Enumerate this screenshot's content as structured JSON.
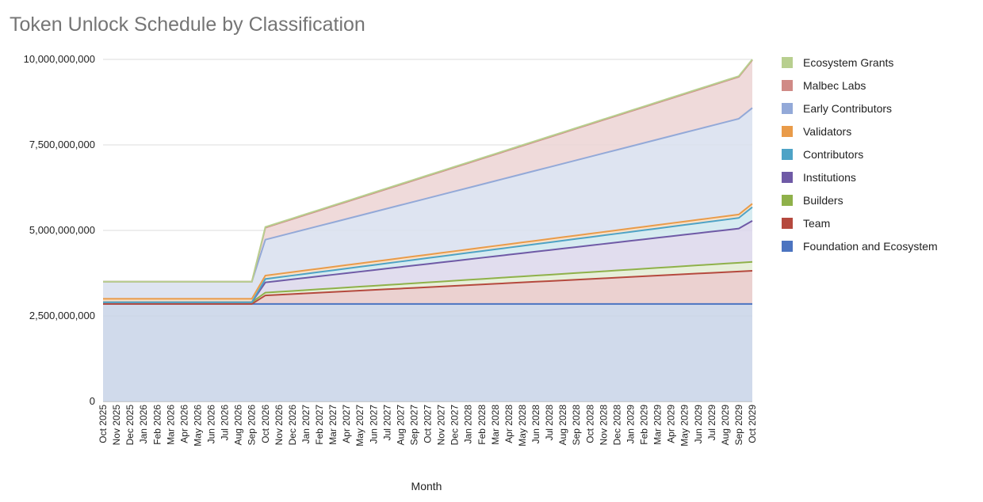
{
  "title": "Token Unlock Schedule by Classification",
  "chart_data": {
    "type": "area",
    "stacked": true,
    "title": "Token Unlock Schedule by Classification",
    "xlabel": "Month",
    "ylabel": "",
    "ylim": [
      0,
      10000000000
    ],
    "yticks": [
      0,
      2500000000,
      5000000000,
      7500000000,
      10000000000
    ],
    "ytick_labels": [
      "0",
      "2,500,000,000",
      "5,000,000,000",
      "7,500,000,000",
      "10,000,000,000"
    ],
    "grid": true,
    "legend_position": "right",
    "categories": [
      "Oct 2025",
      "Nov 2025",
      "Dec 2025",
      "Jan 2026",
      "Feb 2026",
      "Mar 2026",
      "Apr 2026",
      "May 2026",
      "Jun 2026",
      "Jul 2026",
      "Aug 2026",
      "Sep 2026",
      "Oct 2026",
      "Nov 2026",
      "Dec 2026",
      "Jan 2027",
      "Feb 2027",
      "Mar 2027",
      "Apr 2027",
      "May 2027",
      "Jun 2027",
      "Jul 2027",
      "Aug 2027",
      "Sep 2027",
      "Oct 2027",
      "Nov 2027",
      "Dec 2027",
      "Jan 2028",
      "Feb 2028",
      "Mar 2028",
      "Apr 2028",
      "May 2028",
      "Jun 2028",
      "Jul 2028",
      "Aug 2028",
      "Sep 2028",
      "Oct 2028",
      "Nov 2028",
      "Dec 2028",
      "Jan 2029",
      "Feb 2029",
      "Mar 2029",
      "Apr 2029",
      "May 2029",
      "Jun 2029",
      "Jul 2029",
      "Aug 2029",
      "Sep 2029",
      "Oct 2029"
    ],
    "series": [
      {
        "name": "Foundation and Ecosystem",
        "color": "#4c74c0",
        "fill": "#c8d3e7",
        "values": [
          2850000000,
          2850000000,
          2850000000,
          2850000000,
          2850000000,
          2850000000,
          2850000000,
          2850000000,
          2850000000,
          2850000000,
          2850000000,
          2850000000,
          2850000000,
          2850000000,
          2850000000,
          2850000000,
          2850000000,
          2850000000,
          2850000000,
          2850000000,
          2850000000,
          2850000000,
          2850000000,
          2850000000,
          2850000000,
          2850000000,
          2850000000,
          2850000000,
          2850000000,
          2850000000,
          2850000000,
          2850000000,
          2850000000,
          2850000000,
          2850000000,
          2850000000,
          2850000000,
          2850000000,
          2850000000,
          2850000000,
          2850000000,
          2850000000,
          2850000000,
          2850000000,
          2850000000,
          2850000000,
          2850000000,
          2850000000,
          2850000000
        ]
      },
      {
        "name": "Team",
        "color": "#b5493e",
        "fill": "#e8c9c8",
        "values": [
          0,
          0,
          0,
          0,
          0,
          0,
          0,
          0,
          0,
          0,
          0,
          0,
          250000000,
          270000000,
          290000000,
          310000000,
          330000000,
          350000000,
          370000000,
          390000000,
          410000000,
          430000000,
          450000000,
          470000000,
          490000000,
          510000000,
          530000000,
          550000000,
          570000000,
          590000000,
          610000000,
          630000000,
          650000000,
          670000000,
          690000000,
          710000000,
          730000000,
          750000000,
          770000000,
          790000000,
          810000000,
          830000000,
          850000000,
          870000000,
          890000000,
          910000000,
          930000000,
          950000000,
          970000000
        ]
      },
      {
        "name": "Builders",
        "color": "#8fb14a",
        "fill": "#e3ecd3",
        "values": [
          50000000,
          50000000,
          50000000,
          50000000,
          50000000,
          50000000,
          50000000,
          50000000,
          50000000,
          50000000,
          50000000,
          50000000,
          80000000,
          85000000,
          90000000,
          95000000,
          100000000,
          105000000,
          110000000,
          115000000,
          120000000,
          125000000,
          130000000,
          135000000,
          140000000,
          145000000,
          150000000,
          155000000,
          160000000,
          165000000,
          170000000,
          175000000,
          180000000,
          185000000,
          190000000,
          195000000,
          200000000,
          205000000,
          210000000,
          215000000,
          220000000,
          225000000,
          230000000,
          235000000,
          240000000,
          245000000,
          250000000,
          255000000,
          260000000
        ]
      },
      {
        "name": "Institutions",
        "color": "#6f5aa6",
        "fill": "#dcd7eb",
        "values": [
          0,
          0,
          0,
          0,
          0,
          0,
          0,
          0,
          0,
          0,
          0,
          0,
          300000000,
          320000000,
          340000000,
          360000000,
          380000000,
          400000000,
          420000000,
          440000000,
          460000000,
          480000000,
          500000000,
          520000000,
          540000000,
          560000000,
          580000000,
          600000000,
          620000000,
          640000000,
          660000000,
          680000000,
          700000000,
          720000000,
          740000000,
          760000000,
          780000000,
          800000000,
          820000000,
          840000000,
          860000000,
          880000000,
          900000000,
          920000000,
          940000000,
          960000000,
          980000000,
          1000000000,
          1200000000
        ]
      },
      {
        "name": "Contributors",
        "color": "#4ea3c6",
        "fill": "#cfe7ef",
        "values": [
          0,
          0,
          0,
          0,
          0,
          0,
          0,
          0,
          0,
          0,
          0,
          0,
          100000000,
          106000000,
          112000000,
          118000000,
          124000000,
          130000000,
          136000000,
          142000000,
          148000000,
          154000000,
          160000000,
          166000000,
          172000000,
          178000000,
          184000000,
          190000000,
          196000000,
          202000000,
          208000000,
          214000000,
          220000000,
          226000000,
          232000000,
          238000000,
          244000000,
          250000000,
          256000000,
          262000000,
          268000000,
          274000000,
          280000000,
          286000000,
          292000000,
          298000000,
          304000000,
          310000000,
          400000000
        ]
      },
      {
        "name": "Validators",
        "color": "#e99b49",
        "fill": "#f6dcc0",
        "values": [
          100000000,
          100000000,
          100000000,
          100000000,
          100000000,
          100000000,
          100000000,
          100000000,
          100000000,
          100000000,
          100000000,
          100000000,
          100000000,
          100000000,
          100000000,
          100000000,
          100000000,
          100000000,
          100000000,
          100000000,
          100000000,
          100000000,
          100000000,
          100000000,
          100000000,
          100000000,
          100000000,
          100000000,
          100000000,
          100000000,
          100000000,
          100000000,
          100000000,
          100000000,
          100000000,
          100000000,
          100000000,
          100000000,
          100000000,
          100000000,
          100000000,
          100000000,
          100000000,
          100000000,
          100000000,
          100000000,
          100000000,
          100000000,
          100000000
        ]
      },
      {
        "name": "Early Contributors",
        "color": "#93a9d8",
        "fill": "#d8dfee",
        "values": [
          500000000,
          500000000,
          500000000,
          500000000,
          500000000,
          500000000,
          500000000,
          500000000,
          500000000,
          500000000,
          500000000,
          500000000,
          1050000000,
          1100000000,
          1150000000,
          1200000000,
          1250000000,
          1300000000,
          1350000000,
          1400000000,
          1450000000,
          1500000000,
          1550000000,
          1600000000,
          1650000000,
          1700000000,
          1750000000,
          1800000000,
          1850000000,
          1900000000,
          1950000000,
          2000000000,
          2050000000,
          2100000000,
          2150000000,
          2200000000,
          2250000000,
          2300000000,
          2350000000,
          2400000000,
          2450000000,
          2500000000,
          2550000000,
          2600000000,
          2650000000,
          2700000000,
          2750000000,
          2800000000,
          2800000000
        ]
      },
      {
        "name": "Malbec Labs",
        "color": "#d08a86",
        "fill": "#ecd3d4",
        "values": [
          0,
          0,
          0,
          0,
          0,
          0,
          0,
          0,
          0,
          0,
          0,
          0,
          350000000,
          375000000,
          400000000,
          425000000,
          450000000,
          475000000,
          500000000,
          525000000,
          550000000,
          575000000,
          600000000,
          625000000,
          650000000,
          675000000,
          700000000,
          725000000,
          750000000,
          775000000,
          800000000,
          825000000,
          850000000,
          875000000,
          900000000,
          925000000,
          950000000,
          975000000,
          1000000000,
          1025000000,
          1050000000,
          1075000000,
          1100000000,
          1125000000,
          1150000000,
          1175000000,
          1200000000,
          1225000000,
          1400000000
        ]
      },
      {
        "name": "Ecosystem Grants",
        "color": "#b8cf8f",
        "fill": "#e8eedb",
        "values": [
          0,
          0,
          0,
          0,
          0,
          0,
          0,
          0,
          0,
          0,
          0,
          0,
          20000000,
          20000000,
          20000000,
          20000000,
          20000000,
          20000000,
          20000000,
          20000000,
          20000000,
          20000000,
          20000000,
          20000000,
          20000000,
          20000000,
          20000000,
          20000000,
          20000000,
          20000000,
          20000000,
          20000000,
          20000000,
          20000000,
          20000000,
          20000000,
          20000000,
          20000000,
          20000000,
          20000000,
          20000000,
          20000000,
          20000000,
          20000000,
          20000000,
          20000000,
          20000000,
          20000000,
          20000000
        ]
      }
    ],
    "legend_order": [
      "Ecosystem Grants",
      "Malbec Labs",
      "Early Contributors",
      "Validators",
      "Contributors",
      "Institutions",
      "Builders",
      "Team",
      "Foundation and Ecosystem"
    ]
  }
}
